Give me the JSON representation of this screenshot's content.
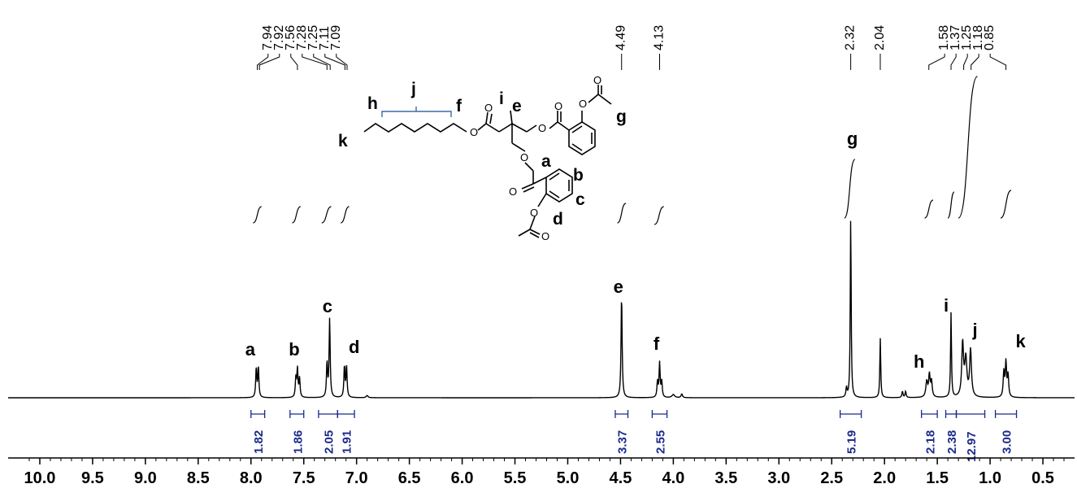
{
  "chart_data": {
    "type": "line",
    "title": "",
    "xlabel": "",
    "ylabel": "",
    "xlim": [
      10.3,
      0.2
    ],
    "x_reversed": true,
    "xticks": [
      10.0,
      9.5,
      9.0,
      8.5,
      8.0,
      7.5,
      7.0,
      6.5,
      6.0,
      5.5,
      5.0,
      4.5,
      4.0,
      3.5,
      3.0,
      2.5,
      2.0,
      1.5,
      1.0,
      0.5
    ],
    "xtick_labels": [
      "10.0",
      "9.5",
      "9.0",
      "8.5",
      "8.0",
      "7.5",
      "7.0",
      "6.5",
      "6.0",
      "5.5",
      "5.0",
      "4.5",
      "4.0",
      "3.5",
      "3.0",
      "2.5",
      "2.0",
      "1.5",
      "1.0",
      "0.5"
    ],
    "grid": false,
    "peak_labels": [
      "7.94",
      "7.92",
      "7.56",
      "7.28",
      "7.25",
      "7.11",
      "7.09",
      "4.49",
      "4.13",
      "2.32",
      "2.04",
      "1.58",
      "1.37",
      "1.25",
      "1.18",
      "0.85"
    ],
    "peak_label_positions": [
      7.94,
      7.92,
      7.56,
      7.28,
      7.25,
      7.11,
      7.09,
      4.49,
      4.13,
      2.32,
      2.04,
      1.58,
      1.37,
      1.25,
      1.18,
      0.85
    ],
    "peaks": [
      {
        "shift": 7.95,
        "height": 0.095,
        "width": 0.006
      },
      {
        "shift": 7.93,
        "height": 0.095,
        "width": 0.006
      },
      {
        "shift": 7.575,
        "height": 0.06,
        "width": 0.006
      },
      {
        "shift": 7.56,
        "height": 0.09,
        "width": 0.006
      },
      {
        "shift": 7.54,
        "height": 0.06,
        "width": 0.006
      },
      {
        "shift": 7.28,
        "height": 0.11,
        "width": 0.006
      },
      {
        "shift": 7.255,
        "height": 0.25,
        "width": 0.006
      },
      {
        "shift": 7.115,
        "height": 0.1,
        "width": 0.006
      },
      {
        "shift": 7.095,
        "height": 0.1,
        "width": 0.006
      },
      {
        "shift": 6.9,
        "height": 0.007,
        "width": 0.01
      },
      {
        "shift": 4.49,
        "height": 0.33,
        "width": 0.006
      },
      {
        "shift": 4.15,
        "height": 0.05,
        "width": 0.006
      },
      {
        "shift": 4.13,
        "height": 0.11,
        "width": 0.006
      },
      {
        "shift": 4.11,
        "height": 0.05,
        "width": 0.006
      },
      {
        "shift": 4.0,
        "height": 0.01,
        "width": 0.015
      },
      {
        "shift": 3.92,
        "height": 0.012,
        "width": 0.008
      },
      {
        "shift": 2.36,
        "height": 0.03,
        "width": 0.006
      },
      {
        "shift": 2.32,
        "height": 0.58,
        "width": 0.005
      },
      {
        "shift": 2.04,
        "height": 0.19,
        "width": 0.005
      },
      {
        "shift": 1.83,
        "height": 0.02,
        "width": 0.006
      },
      {
        "shift": 1.8,
        "height": 0.02,
        "width": 0.006
      },
      {
        "shift": 1.6,
        "height": 0.05,
        "width": 0.01
      },
      {
        "shift": 1.575,
        "height": 0.07,
        "width": 0.008
      },
      {
        "shift": 1.555,
        "height": 0.05,
        "width": 0.008
      },
      {
        "shift": 1.37,
        "height": 0.27,
        "width": 0.005
      },
      {
        "shift": 1.26,
        "height": 0.17,
        "width": 0.01
      },
      {
        "shift": 1.23,
        "height": 0.12,
        "width": 0.012
      },
      {
        "shift": 1.185,
        "height": 0.15,
        "width": 0.01
      },
      {
        "shift": 0.87,
        "height": 0.08,
        "width": 0.007
      },
      {
        "shift": 0.85,
        "height": 0.11,
        "width": 0.007
      },
      {
        "shift": 0.83,
        "height": 0.07,
        "width": 0.007
      }
    ],
    "assignments": [
      {
        "label": "a",
        "shift": 7.93
      },
      {
        "label": "b",
        "shift": 7.56
      },
      {
        "label": "c",
        "shift": 7.26
      },
      {
        "label": "d",
        "shift": 7.1
      },
      {
        "label": "e",
        "shift": 4.49
      },
      {
        "label": "f",
        "shift": 4.13
      },
      {
        "label": "g",
        "shift": 2.32
      },
      {
        "label": "h",
        "shift": 1.58
      },
      {
        "label": "i",
        "shift": 1.37
      },
      {
        "label": "j",
        "shift": 1.22
      },
      {
        "label": "k",
        "shift": 0.85
      }
    ],
    "integrals": [
      {
        "from": 8.0,
        "to": 7.87,
        "value": "1.82"
      },
      {
        "from": 7.63,
        "to": 7.5,
        "value": "1.86"
      },
      {
        "from": 7.36,
        "to": 7.18,
        "value": "2.05"
      },
      {
        "from": 7.18,
        "to": 7.02,
        "value": "1.91"
      },
      {
        "from": 4.55,
        "to": 4.43,
        "value": "3.37"
      },
      {
        "from": 4.2,
        "to": 4.06,
        "value": "2.55"
      },
      {
        "from": 2.42,
        "to": 2.22,
        "value": "5.19"
      },
      {
        "from": 1.65,
        "to": 1.5,
        "value": "2.18"
      },
      {
        "from": 1.42,
        "to": 1.32,
        "value": "2.38"
      },
      {
        "from": 1.32,
        "to": 1.05,
        "value": "12.97"
      },
      {
        "from": 0.95,
        "to": 0.75,
        "value": "3.00"
      }
    ],
    "spectrum_color": "#000000",
    "integral_color": "#1c2a8a",
    "structure_bracket_color": "#3a6aa8"
  },
  "structure": {
    "labels": [
      "a",
      "b",
      "c",
      "d",
      "e",
      "f",
      "g",
      "h",
      "i",
      "j",
      "k"
    ],
    "atoms": [
      "O",
      "O",
      "O",
      "O",
      "O",
      "O",
      "O",
      "O",
      "O",
      "O"
    ]
  }
}
